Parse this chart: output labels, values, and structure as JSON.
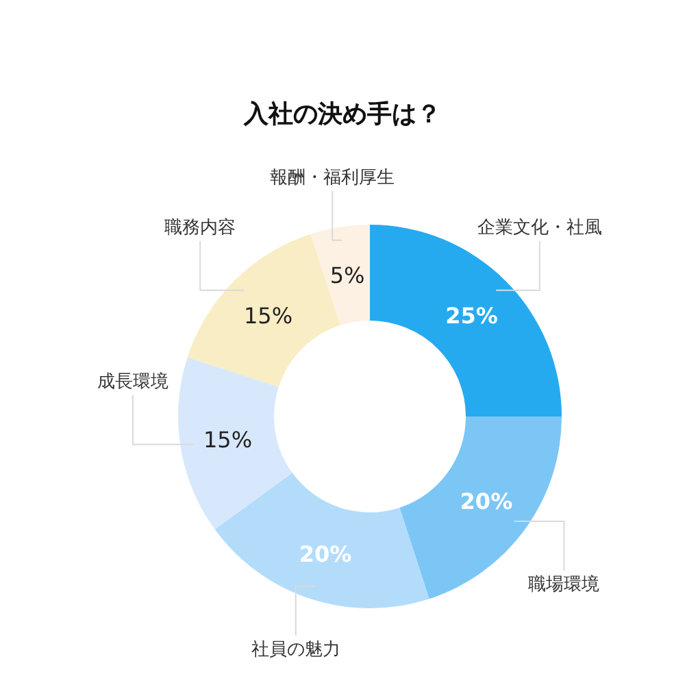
{
  "chart_data": {
    "type": "donut",
    "title": "入社の決め手は？",
    "categories": [
      "企業文化・社風",
      "職場環境",
      "社員の魅力",
      "成長環境",
      "職務内容",
      "報酬・福利厚生"
    ],
    "values": [
      25,
      20,
      20,
      15,
      15,
      5
    ],
    "value_labels": [
      "25%",
      "20%",
      "20%",
      "15%",
      "15%",
      "5%"
    ],
    "colors": [
      "#25aaf0",
      "#7cc6f6",
      "#b3dcfb",
      "#d7e8fc",
      "#f8edc4",
      "#fdf1e3"
    ]
  }
}
